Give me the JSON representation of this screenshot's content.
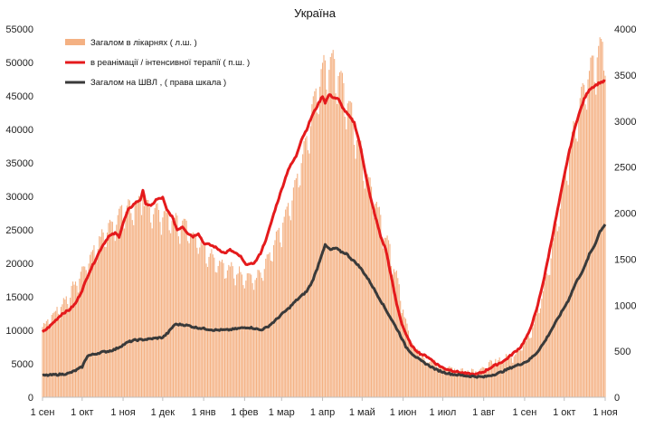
{
  "chart_data": {
    "type": "bar+line",
    "title": "Україна",
    "x_axis": {
      "tick_labels": [
        "1 сен",
        "1 окт",
        "1 ноя",
        "1 дек",
        "1 янв",
        "1 фев",
        "1 мар",
        "1 апр",
        "1 май",
        "1 июн",
        "1 июл",
        "1 авг",
        "1 сен",
        "1 окт",
        "1 ноя"
      ],
      "tick_days": [
        0,
        30,
        61,
        91,
        122,
        153,
        181,
        212,
        242,
        273,
        303,
        334,
        365,
        395,
        426
      ]
    },
    "y_left": {
      "min": 0,
      "max": 55000,
      "step": 5000,
      "tick_labels": [
        "0",
        "5000",
        "10000",
        "15000",
        "20000",
        "25000",
        "30000",
        "35000",
        "40000",
        "45000",
        "50000",
        "55000"
      ]
    },
    "y_right": {
      "min": 0,
      "max": 4000,
      "step": 500,
      "tick_labels": [
        "0",
        "500",
        "1000",
        "1500",
        "2000",
        "2500",
        "3000",
        "3500",
        "4000"
      ]
    },
    "series": [
      {
        "name": "Загалом в лікарнях ( л.ш. )",
        "kind": "bar",
        "axis": "left",
        "color": "#f4b183",
        "keypoints": [
          [
            0,
            10500
          ],
          [
            10,
            12500
          ],
          [
            20,
            15000
          ],
          [
            30,
            18500
          ],
          [
            40,
            22000
          ],
          [
            50,
            25000
          ],
          [
            55,
            26000
          ],
          [
            61,
            27500
          ],
          [
            70,
            28500
          ],
          [
            80,
            28000
          ],
          [
            91,
            27000
          ],
          [
            100,
            26000
          ],
          [
            110,
            25000
          ],
          [
            122,
            22000
          ],
          [
            130,
            20500
          ],
          [
            140,
            19000
          ],
          [
            153,
            18000
          ],
          [
            160,
            17500
          ],
          [
            165,
            18000
          ],
          [
            170,
            20000
          ],
          [
            181,
            25000
          ],
          [
            190,
            30000
          ],
          [
            200,
            38000
          ],
          [
            206,
            44000
          ],
          [
            212,
            48000
          ],
          [
            218,
            49500
          ],
          [
            224,
            48000
          ],
          [
            232,
            43000
          ],
          [
            240,
            37000
          ],
          [
            248,
            31000
          ],
          [
            256,
            26000
          ],
          [
            264,
            21000
          ],
          [
            270,
            16000
          ],
          [
            276,
            10000
          ],
          [
            282,
            7000
          ],
          [
            290,
            5500
          ],
          [
            300,
            4700
          ],
          [
            310,
            4200
          ],
          [
            320,
            4000
          ],
          [
            334,
            4200
          ],
          [
            345,
            5500
          ],
          [
            355,
            6000
          ],
          [
            365,
            8000
          ],
          [
            372,
            11000
          ],
          [
            380,
            16000
          ],
          [
            388,
            24000
          ],
          [
            395,
            32000
          ],
          [
            405,
            42000
          ],
          [
            412,
            47000
          ],
          [
            418,
            49500
          ],
          [
            422,
            51000
          ],
          [
            426,
            52000
          ]
        ],
        "spikes": [
          [
            67,
            27500
          ],
          [
            76,
            31000
          ]
        ],
        "noise": 1800
      },
      {
        "name": "в реанімації / інтенсивної терапії ( п.ш. )",
        "kind": "line",
        "axis": "left",
        "color": "#e41a1c",
        "points": [
          [
            0,
            9700
          ],
          [
            5,
            10500
          ],
          [
            10,
            11500
          ],
          [
            15,
            12500
          ],
          [
            20,
            13000
          ],
          [
            25,
            14000
          ],
          [
            30,
            16000
          ],
          [
            35,
            18500
          ],
          [
            40,
            20500
          ],
          [
            45,
            22500
          ],
          [
            50,
            24000
          ],
          [
            55,
            24500
          ],
          [
            58,
            24000
          ],
          [
            61,
            26000
          ],
          [
            65,
            28000
          ],
          [
            70,
            29000
          ],
          [
            74,
            29500
          ],
          [
            76,
            30800
          ],
          [
            78,
            29000
          ],
          [
            82,
            28500
          ],
          [
            86,
            29500
          ],
          [
            91,
            29800
          ],
          [
            94,
            28000
          ],
          [
            98,
            27000
          ],
          [
            102,
            25000
          ],
          [
            106,
            25500
          ],
          [
            110,
            24500
          ],
          [
            114,
            24000
          ],
          [
            118,
            24500
          ],
          [
            122,
            23000
          ],
          [
            126,
            22800
          ],
          [
            130,
            22500
          ],
          [
            134,
            22000
          ],
          [
            138,
            21500
          ],
          [
            142,
            22000
          ],
          [
            146,
            21500
          ],
          [
            150,
            21000
          ],
          [
            153,
            20000
          ],
          [
            157,
            19800
          ],
          [
            161,
            20200
          ],
          [
            165,
            21500
          ],
          [
            170,
            24000
          ],
          [
            176,
            28000
          ],
          [
            181,
            31000
          ],
          [
            186,
            34000
          ],
          [
            192,
            36000
          ],
          [
            196,
            38500
          ],
          [
            200,
            40000
          ],
          [
            204,
            42000
          ],
          [
            208,
            43500
          ],
          [
            212,
            45000
          ],
          [
            214,
            44000
          ],
          [
            217,
            45200
          ],
          [
            220,
            44800
          ],
          [
            224,
            44500
          ],
          [
            228,
            43000
          ],
          [
            232,
            42000
          ],
          [
            236,
            41000
          ],
          [
            240,
            38000
          ],
          [
            244,
            34000
          ],
          [
            248,
            30000
          ],
          [
            252,
            27000
          ],
          [
            256,
            24000
          ],
          [
            260,
            22000
          ],
          [
            264,
            18000
          ],
          [
            268,
            14000
          ],
          [
            272,
            11000
          ],
          [
            276,
            9000
          ],
          [
            280,
            7500
          ],
          [
            286,
            6500
          ],
          [
            292,
            6000
          ],
          [
            298,
            5000
          ],
          [
            304,
            4300
          ],
          [
            310,
            4000
          ],
          [
            316,
            3700
          ],
          [
            322,
            3500
          ],
          [
            328,
            3400
          ],
          [
            334,
            3800
          ],
          [
            340,
            4500
          ],
          [
            345,
            5000
          ],
          [
            350,
            5500
          ],
          [
            356,
            6500
          ],
          [
            362,
            7500
          ],
          [
            368,
            9500
          ],
          [
            374,
            13000
          ],
          [
            380,
            18000
          ],
          [
            386,
            24000
          ],
          [
            392,
            30000
          ],
          [
            398,
            36000
          ],
          [
            404,
            41000
          ],
          [
            410,
            44500
          ],
          [
            414,
            46000
          ],
          [
            418,
            46500
          ],
          [
            422,
            47000
          ],
          [
            426,
            47200
          ]
        ]
      },
      {
        "name": "Загалом на ШВЛ , ( права шкала )",
        "kind": "line",
        "axis": "right",
        "color": "#3a3a3a",
        "points": [
          [
            0,
            235
          ],
          [
            5,
            240
          ],
          [
            10,
            245
          ],
          [
            15,
            250
          ],
          [
            20,
            260
          ],
          [
            25,
            290
          ],
          [
            30,
            330
          ],
          [
            34,
            450
          ],
          [
            40,
            470
          ],
          [
            45,
            490
          ],
          [
            50,
            500
          ],
          [
            55,
            520
          ],
          [
            60,
            560
          ],
          [
            65,
            600
          ],
          [
            70,
            620
          ],
          [
            75,
            625
          ],
          [
            80,
            630
          ],
          [
            85,
            640
          ],
          [
            91,
            650
          ],
          [
            95,
            700
          ],
          [
            100,
            790
          ],
          [
            105,
            790
          ],
          [
            110,
            780
          ],
          [
            115,
            760
          ],
          [
            120,
            750
          ],
          [
            125,
            740
          ],
          [
            130,
            730
          ],
          [
            135,
            730
          ],
          [
            140,
            730
          ],
          [
            145,
            740
          ],
          [
            150,
            750
          ],
          [
            155,
            760
          ],
          [
            160,
            750
          ],
          [
            165,
            730
          ],
          [
            170,
            760
          ],
          [
            176,
            830
          ],
          [
            181,
            900
          ],
          [
            186,
            960
          ],
          [
            192,
            1050
          ],
          [
            196,
            1100
          ],
          [
            200,
            1150
          ],
          [
            204,
            1250
          ],
          [
            208,
            1400
          ],
          [
            212,
            1580
          ],
          [
            214,
            1650
          ],
          [
            218,
            1600
          ],
          [
            222,
            1620
          ],
          [
            226,
            1580
          ],
          [
            230,
            1560
          ],
          [
            234,
            1500
          ],
          [
            238,
            1450
          ],
          [
            242,
            1380
          ],
          [
            248,
            1250
          ],
          [
            254,
            1100
          ],
          [
            260,
            950
          ],
          [
            266,
            800
          ],
          [
            270,
            700
          ],
          [
            275,
            550
          ],
          [
            280,
            470
          ],
          [
            286,
            400
          ],
          [
            292,
            350
          ],
          [
            298,
            300
          ],
          [
            304,
            270
          ],
          [
            310,
            250
          ],
          [
            316,
            240
          ],
          [
            322,
            230
          ],
          [
            328,
            225
          ],
          [
            334,
            220
          ],
          [
            340,
            240
          ],
          [
            345,
            260
          ],
          [
            350,
            290
          ],
          [
            356,
            330
          ],
          [
            362,
            360
          ],
          [
            368,
            400
          ],
          [
            374,
            480
          ],
          [
            380,
            600
          ],
          [
            386,
            750
          ],
          [
            392,
            900
          ],
          [
            398,
            1050
          ],
          [
            404,
            1250
          ],
          [
            410,
            1400
          ],
          [
            414,
            1550
          ],
          [
            418,
            1650
          ],
          [
            422,
            1800
          ],
          [
            426,
            1880
          ]
        ]
      }
    ],
    "legend_position": "top-left",
    "grid": false
  }
}
